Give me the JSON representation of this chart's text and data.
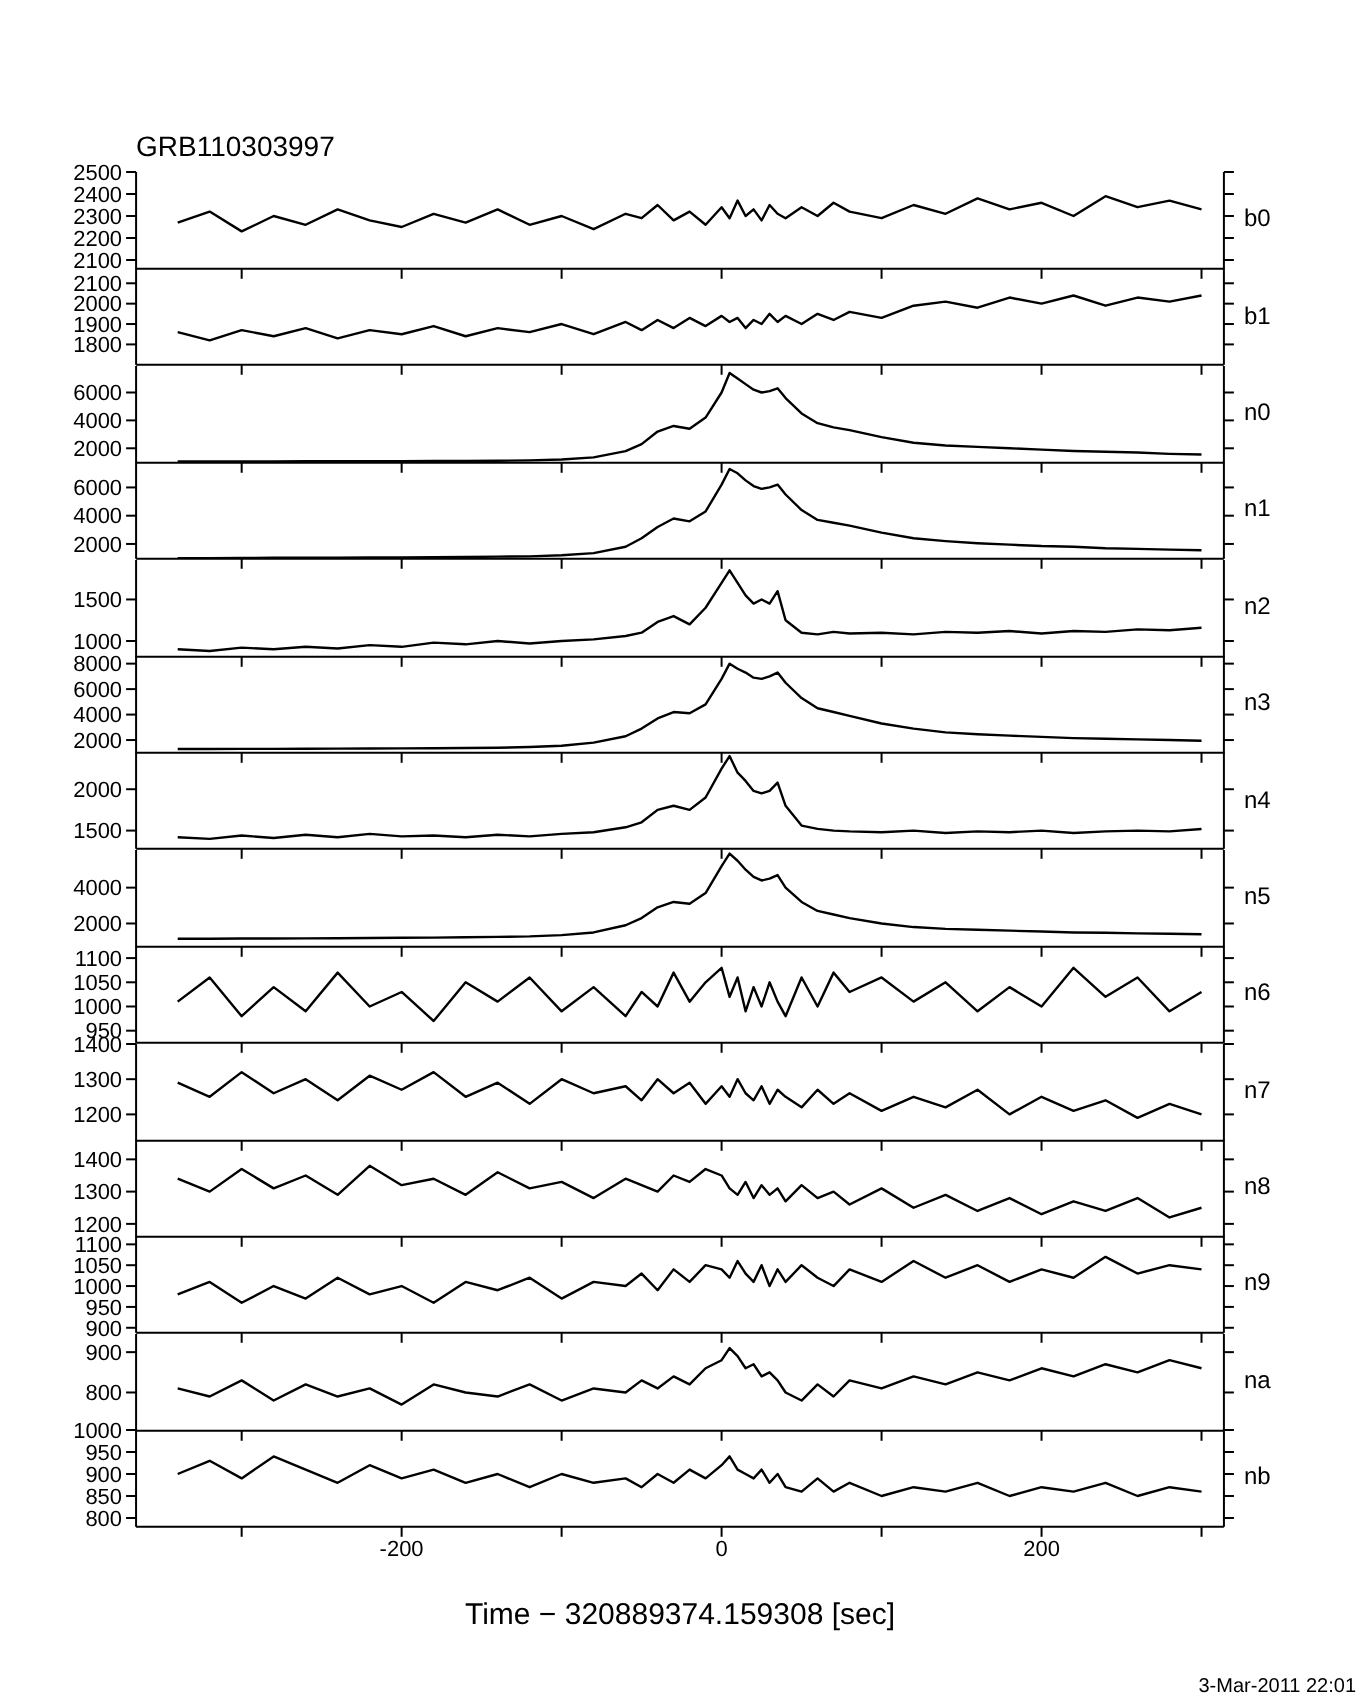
{
  "chart_data": [
    {
      "type": "line",
      "title": "GRB110303997",
      "x": [
        -340,
        -320,
        -300,
        -280,
        -260,
        -240,
        -220,
        -200,
        -180,
        -160,
        -140,
        -120,
        -100,
        -80,
        -60,
        -50,
        -40,
        -30,
        -20,
        -10,
        0,
        5,
        10,
        15,
        20,
        25,
        30,
        35,
        40,
        50,
        60,
        70,
        80,
        100,
        120,
        140,
        160,
        180,
        200,
        220,
        240,
        260,
        280,
        300
      ],
      "xlim": [
        -366,
        314
      ],
      "xticks": [
        {
          "value": -300,
          "label": null
        },
        {
          "value": -200,
          "label": null
        },
        {
          "value": -100,
          "label": null
        },
        {
          "value": 0,
          "label": null
        },
        {
          "value": 100,
          "label": null
        },
        {
          "value": 200,
          "label": null
        },
        {
          "value": 300,
          "label": null
        }
      ],
      "ylim": [
        2060,
        2500
      ],
      "yticks": [
        2100,
        2200,
        2300,
        2400,
        2500
      ],
      "tick_labels": "y",
      "series": [
        {
          "name": "b0",
          "color": "#000000",
          "values": [
            2270,
            2320,
            2230,
            2300,
            2260,
            2330,
            2280,
            2250,
            2310,
            2270,
            2330,
            2260,
            2300,
            2240,
            2310,
            2290,
            2350,
            2280,
            2320,
            2260,
            2340,
            2290,
            2370,
            2300,
            2330,
            2280,
            2350,
            2310,
            2290,
            2340,
            2300,
            2360,
            2320,
            2290,
            2350,
            2310,
            2380,
            2330,
            2360,
            2300,
            2390,
            2340,
            2370,
            2330
          ]
        }
      ]
    },
    {
      "type": "line",
      "x": [
        -340,
        -320,
        -300,
        -280,
        -260,
        -240,
        -220,
        -200,
        -180,
        -160,
        -140,
        -120,
        -100,
        -80,
        -60,
        -50,
        -40,
        -30,
        -20,
        -10,
        0,
        5,
        10,
        15,
        20,
        25,
        30,
        35,
        40,
        50,
        60,
        70,
        80,
        100,
        120,
        140,
        160,
        180,
        200,
        220,
        240,
        260,
        280,
        300
      ],
      "xlim": [
        -366,
        314
      ],
      "xticks": [
        {
          "value": -300,
          "label": null
        },
        {
          "value": -200,
          "label": null
        },
        {
          "value": -100,
          "label": null
        },
        {
          "value": 0,
          "label": null
        },
        {
          "value": 100,
          "label": null
        },
        {
          "value": 200,
          "label": null
        },
        {
          "value": 300,
          "label": null
        }
      ],
      "ylim": [
        1700,
        2175
      ],
      "yticks": [
        1800,
        1900,
        2000,
        2100
      ],
      "tick_labels": "y",
      "series": [
        {
          "name": "b1",
          "color": "#000000",
          "values": [
            1860,
            1820,
            1870,
            1840,
            1880,
            1830,
            1870,
            1850,
            1890,
            1840,
            1880,
            1860,
            1900,
            1850,
            1910,
            1870,
            1920,
            1880,
            1930,
            1890,
            1940,
            1910,
            1930,
            1880,
            1920,
            1900,
            1950,
            1910,
            1940,
            1900,
            1950,
            1920,
            1960,
            1930,
            1990,
            2010,
            1980,
            2030,
            2000,
            2040,
            1990,
            2030,
            2010,
            2040
          ]
        }
      ]
    },
    {
      "type": "line",
      "x": [
        -340,
        -320,
        -300,
        -280,
        -260,
        -240,
        -220,
        -200,
        -180,
        -160,
        -140,
        -120,
        -100,
        -80,
        -60,
        -50,
        -40,
        -30,
        -20,
        -10,
        0,
        5,
        10,
        15,
        20,
        25,
        30,
        35,
        40,
        50,
        60,
        70,
        80,
        100,
        120,
        140,
        160,
        180,
        200,
        220,
        240,
        260,
        280,
        300
      ],
      "xlim": [
        -366,
        314
      ],
      "xticks": [
        {
          "value": -300,
          "label": null
        },
        {
          "value": -200,
          "label": null
        },
        {
          "value": -100,
          "label": null
        },
        {
          "value": 0,
          "label": null
        },
        {
          "value": 100,
          "label": null
        },
        {
          "value": 200,
          "label": null
        },
        {
          "value": 300,
          "label": null
        }
      ],
      "ylim": [
        960,
        7900
      ],
      "yticks": [
        2000,
        4000,
        6000
      ],
      "tick_labels": "y",
      "series": [
        {
          "name": "n0",
          "color": "#000000",
          "values": [
            1050,
            1050,
            1060,
            1060,
            1070,
            1070,
            1080,
            1080,
            1090,
            1100,
            1110,
            1130,
            1200,
            1350,
            1800,
            2300,
            3200,
            3600,
            3400,
            4200,
            6000,
            7400,
            7000,
            6600,
            6200,
            6000,
            6100,
            6300,
            5600,
            4500,
            3800,
            3500,
            3300,
            2800,
            2400,
            2200,
            2100,
            2000,
            1900,
            1800,
            1750,
            1700,
            1600,
            1550
          ]
        }
      ]
    },
    {
      "type": "line",
      "x": [
        -340,
        -320,
        -300,
        -280,
        -260,
        -240,
        -220,
        -200,
        -180,
        -160,
        -140,
        -120,
        -100,
        -80,
        -60,
        -50,
        -40,
        -30,
        -20,
        -10,
        0,
        5,
        10,
        15,
        20,
        25,
        30,
        35,
        40,
        50,
        60,
        70,
        80,
        100,
        120,
        140,
        160,
        180,
        200,
        220,
        240,
        260,
        280,
        300
      ],
      "xlim": [
        -366,
        314
      ],
      "xticks": [
        {
          "value": -300,
          "label": null
        },
        {
          "value": -200,
          "label": null
        },
        {
          "value": -100,
          "label": null
        },
        {
          "value": 0,
          "label": null
        },
        {
          "value": 100,
          "label": null
        },
        {
          "value": 200,
          "label": null
        },
        {
          "value": 300,
          "label": null
        }
      ],
      "ylim": [
        950,
        7800
      ],
      "yticks": [
        2000,
        4000,
        6000
      ],
      "tick_labels": "y",
      "series": [
        {
          "name": "n1",
          "color": "#000000",
          "values": [
            1000,
            1000,
            1010,
            1020,
            1020,
            1030,
            1040,
            1050,
            1060,
            1080,
            1100,
            1120,
            1200,
            1350,
            1800,
            2400,
            3200,
            3800,
            3600,
            4300,
            6200,
            7300,
            7000,
            6500,
            6100,
            5900,
            6000,
            6200,
            5500,
            4400,
            3700,
            3500,
            3300,
            2800,
            2400,
            2200,
            2050,
            1950,
            1850,
            1800,
            1700,
            1650,
            1600,
            1550
          ]
        }
      ]
    },
    {
      "type": "line",
      "x": [
        -340,
        -320,
        -300,
        -280,
        -260,
        -240,
        -220,
        -200,
        -180,
        -160,
        -140,
        -120,
        -100,
        -80,
        -60,
        -50,
        -40,
        -30,
        -20,
        -10,
        0,
        5,
        10,
        15,
        20,
        25,
        30,
        35,
        40,
        50,
        60,
        70,
        80,
        100,
        120,
        140,
        160,
        180,
        200,
        220,
        240,
        260,
        280,
        300
      ],
      "xlim": [
        -366,
        314
      ],
      "xticks": [
        {
          "value": -300,
          "label": null
        },
        {
          "value": -200,
          "label": null
        },
        {
          "value": -100,
          "label": null
        },
        {
          "value": 0,
          "label": null
        },
        {
          "value": 100,
          "label": null
        },
        {
          "value": 200,
          "label": null
        },
        {
          "value": 300,
          "label": null
        }
      ],
      "ylim": [
        810,
        1975
      ],
      "yticks": [
        1000,
        1500
      ],
      "tick_labels": "y",
      "series": [
        {
          "name": "n2",
          "color": "#000000",
          "values": [
            900,
            880,
            920,
            900,
            930,
            910,
            950,
            930,
            980,
            960,
            1000,
            970,
            1000,
            1020,
            1060,
            1100,
            1230,
            1300,
            1200,
            1400,
            1700,
            1850,
            1700,
            1550,
            1450,
            1500,
            1450,
            1600,
            1250,
            1100,
            1080,
            1110,
            1090,
            1100,
            1080,
            1110,
            1100,
            1120,
            1090,
            1120,
            1110,
            1140,
            1130,
            1160
          ]
        }
      ]
    },
    {
      "type": "line",
      "x": [
        -340,
        -320,
        -300,
        -280,
        -260,
        -240,
        -220,
        -200,
        -180,
        -160,
        -140,
        -120,
        -100,
        -80,
        -60,
        -50,
        -40,
        -30,
        -20,
        -10,
        0,
        5,
        10,
        15,
        20,
        25,
        30,
        35,
        40,
        50,
        60,
        70,
        80,
        100,
        120,
        140,
        160,
        180,
        200,
        220,
        240,
        260,
        280,
        300
      ],
      "xlim": [
        -366,
        314
      ],
      "xticks": [
        {
          "value": -300,
          "label": null
        },
        {
          "value": -200,
          "label": null
        },
        {
          "value": -100,
          "label": null
        },
        {
          "value": 0,
          "label": null
        },
        {
          "value": 100,
          "label": null
        },
        {
          "value": 200,
          "label": null
        },
        {
          "value": 300,
          "label": null
        }
      ],
      "ylim": [
        1000,
        8600
      ],
      "yticks": [
        2000,
        4000,
        6000,
        8000
      ],
      "tick_labels": "y",
      "series": [
        {
          "name": "n3",
          "color": "#000000",
          "values": [
            1300,
            1300,
            1310,
            1310,
            1320,
            1330,
            1340,
            1350,
            1360,
            1380,
            1400,
            1450,
            1550,
            1800,
            2300,
            2900,
            3700,
            4200,
            4100,
            4800,
            6800,
            8000,
            7600,
            7300,
            6900,
            6800,
            7000,
            7300,
            6500,
            5300,
            4500,
            4200,
            3900,
            3300,
            2900,
            2600,
            2450,
            2350,
            2250,
            2150,
            2100,
            2050,
            2000,
            1950
          ]
        }
      ]
    },
    {
      "type": "line",
      "x": [
        -340,
        -320,
        -300,
        -280,
        -260,
        -240,
        -220,
        -200,
        -180,
        -160,
        -140,
        -120,
        -100,
        -80,
        -60,
        -50,
        -40,
        -30,
        -20,
        -10,
        0,
        5,
        10,
        15,
        20,
        25,
        30,
        35,
        40,
        50,
        60,
        70,
        80,
        100,
        120,
        140,
        160,
        180,
        200,
        220,
        240,
        260,
        280,
        300
      ],
      "xlim": [
        -366,
        314
      ],
      "xticks": [
        {
          "value": -300,
          "label": null
        },
        {
          "value": -200,
          "label": null
        },
        {
          "value": -100,
          "label": null
        },
        {
          "value": 0,
          "label": null
        },
        {
          "value": 100,
          "label": null
        },
        {
          "value": 200,
          "label": null
        },
        {
          "value": 300,
          "label": null
        }
      ],
      "ylim": [
        1280,
        2450
      ],
      "yticks": [
        1500,
        2000
      ],
      "tick_labels": "y",
      "series": [
        {
          "name": "n4",
          "color": "#000000",
          "values": [
            1420,
            1400,
            1440,
            1410,
            1450,
            1420,
            1460,
            1430,
            1440,
            1420,
            1450,
            1430,
            1460,
            1480,
            1540,
            1600,
            1750,
            1800,
            1750,
            1900,
            2250,
            2400,
            2200,
            2100,
            1980,
            1950,
            1980,
            2080,
            1800,
            1560,
            1520,
            1500,
            1490,
            1480,
            1500,
            1470,
            1490,
            1480,
            1500,
            1470,
            1490,
            1500,
            1490,
            1520
          ]
        }
      ]
    },
    {
      "type": "line",
      "x": [
        -340,
        -320,
        -300,
        -280,
        -260,
        -240,
        -220,
        -200,
        -180,
        -160,
        -140,
        -120,
        -100,
        -80,
        -60,
        -50,
        -40,
        -30,
        -20,
        -10,
        0,
        5,
        10,
        15,
        20,
        25,
        30,
        35,
        40,
        50,
        60,
        70,
        80,
        100,
        120,
        140,
        160,
        180,
        200,
        220,
        240,
        260,
        280,
        300
      ],
      "xlim": [
        -366,
        314
      ],
      "xticks": [
        {
          "value": -300,
          "label": null
        },
        {
          "value": -200,
          "label": null
        },
        {
          "value": -100,
          "label": null
        },
        {
          "value": 0,
          "label": null
        },
        {
          "value": 100,
          "label": null
        },
        {
          "value": 200,
          "label": null
        },
        {
          "value": 300,
          "label": null
        }
      ],
      "ylim": [
        700,
        6100
      ],
      "yticks": [
        2000,
        4000
      ],
      "tick_labels": "y",
      "series": [
        {
          "name": "n5",
          "color": "#000000",
          "values": [
            1150,
            1150,
            1160,
            1160,
            1170,
            1180,
            1190,
            1200,
            1210,
            1230,
            1250,
            1280,
            1350,
            1500,
            1900,
            2300,
            2900,
            3200,
            3100,
            3700,
            5200,
            5900,
            5500,
            5000,
            4600,
            4400,
            4500,
            4700,
            4000,
            3200,
            2700,
            2500,
            2300,
            2000,
            1800,
            1700,
            1650,
            1600,
            1550,
            1500,
            1480,
            1450,
            1430,
            1400
          ]
        }
      ]
    },
    {
      "type": "line",
      "x": [
        -340,
        -320,
        -300,
        -280,
        -260,
        -240,
        -220,
        -200,
        -180,
        -160,
        -140,
        -120,
        -100,
        -80,
        -60,
        -50,
        -40,
        -30,
        -20,
        -10,
        0,
        5,
        10,
        15,
        20,
        25,
        30,
        35,
        40,
        50,
        60,
        70,
        80,
        100,
        120,
        140,
        160,
        180,
        200,
        220,
        240,
        260,
        280,
        300
      ],
      "xlim": [
        -366,
        314
      ],
      "xticks": [
        {
          "value": -300,
          "label": null
        },
        {
          "value": -200,
          "label": null
        },
        {
          "value": -100,
          "label": null
        },
        {
          "value": 0,
          "label": null
        },
        {
          "value": 100,
          "label": null
        },
        {
          "value": 200,
          "label": null
        },
        {
          "value": 300,
          "label": null
        }
      ],
      "ylim": [
        925,
        1125
      ],
      "yticks": [
        950,
        1000,
        1050,
        1100
      ],
      "tick_labels": "y",
      "series": [
        {
          "name": "n6",
          "color": "#000000",
          "values": [
            1010,
            1060,
            980,
            1040,
            990,
            1070,
            1000,
            1030,
            970,
            1050,
            1010,
            1060,
            990,
            1040,
            980,
            1030,
            1000,
            1070,
            1010,
            1050,
            1080,
            1020,
            1060,
            990,
            1040,
            1000,
            1050,
            1010,
            980,
            1060,
            1000,
            1070,
            1030,
            1060,
            1010,
            1050,
            990,
            1040,
            1000,
            1080,
            1020,
            1060,
            990,
            1030
          ]
        }
      ]
    },
    {
      "type": "line",
      "x": [
        -340,
        -320,
        -300,
        -280,
        -260,
        -240,
        -220,
        -200,
        -180,
        -160,
        -140,
        -120,
        -100,
        -80,
        -60,
        -50,
        -40,
        -30,
        -20,
        -10,
        0,
        5,
        10,
        15,
        20,
        25,
        30,
        35,
        40,
        50,
        60,
        70,
        80,
        100,
        120,
        140,
        160,
        180,
        200,
        220,
        240,
        260,
        280,
        300
      ],
      "xlim": [
        -366,
        314
      ],
      "xticks": [
        {
          "value": -300,
          "label": null
        },
        {
          "value": -200,
          "label": null
        },
        {
          "value": -100,
          "label": null
        },
        {
          "value": 0,
          "label": null
        },
        {
          "value": 100,
          "label": null
        },
        {
          "value": 200,
          "label": null
        },
        {
          "value": 300,
          "label": null
        }
      ],
      "ylim": [
        1125,
        1400
      ],
      "yticks": [
        1200,
        1300,
        1400
      ],
      "tick_labels": "y",
      "series": [
        {
          "name": "n7",
          "color": "#000000",
          "values": [
            1290,
            1250,
            1320,
            1260,
            1300,
            1240,
            1310,
            1270,
            1320,
            1250,
            1290,
            1230,
            1300,
            1260,
            1280,
            1240,
            1300,
            1260,
            1290,
            1230,
            1280,
            1250,
            1300,
            1260,
            1240,
            1280,
            1230,
            1270,
            1250,
            1220,
            1270,
            1230,
            1260,
            1210,
            1250,
            1220,
            1270,
            1200,
            1250,
            1210,
            1240,
            1190,
            1230,
            1200
          ]
        }
      ]
    },
    {
      "type": "line",
      "x": [
        -340,
        -320,
        -300,
        -280,
        -260,
        -240,
        -220,
        -200,
        -180,
        -160,
        -140,
        -120,
        -100,
        -80,
        -60,
        -50,
        -40,
        -30,
        -20,
        -10,
        0,
        5,
        10,
        15,
        20,
        25,
        30,
        35,
        40,
        50,
        60,
        70,
        80,
        100,
        120,
        140,
        160,
        180,
        200,
        220,
        240,
        260,
        280,
        300
      ],
      "xlim": [
        -366,
        314
      ],
      "xticks": [
        {
          "value": -300,
          "label": null
        },
        {
          "value": -200,
          "label": null
        },
        {
          "value": -100,
          "label": null
        },
        {
          "value": 0,
          "label": null
        },
        {
          "value": 100,
          "label": null
        },
        {
          "value": 200,
          "label": null
        },
        {
          "value": 300,
          "label": null
        }
      ],
      "ylim": [
        1160,
        1460
      ],
      "yticks": [
        1200,
        1300,
        1400
      ],
      "tick_labels": "y",
      "series": [
        {
          "name": "n8",
          "color": "#000000",
          "values": [
            1340,
            1300,
            1370,
            1310,
            1350,
            1290,
            1380,
            1320,
            1340,
            1290,
            1360,
            1310,
            1330,
            1280,
            1340,
            1320,
            1300,
            1350,
            1330,
            1370,
            1350,
            1310,
            1290,
            1330,
            1280,
            1320,
            1290,
            1310,
            1270,
            1320,
            1280,
            1300,
            1260,
            1310,
            1250,
            1290,
            1240,
            1280,
            1230,
            1270,
            1240,
            1280,
            1220,
            1250
          ]
        }
      ]
    },
    {
      "type": "line",
      "x": [
        -340,
        -320,
        -300,
        -280,
        -260,
        -240,
        -220,
        -200,
        -180,
        -160,
        -140,
        -120,
        -100,
        -80,
        -60,
        -50,
        -40,
        -30,
        -20,
        -10,
        0,
        5,
        10,
        15,
        20,
        25,
        30,
        35,
        40,
        50,
        60,
        70,
        80,
        100,
        120,
        140,
        160,
        180,
        200,
        220,
        240,
        260,
        280,
        300
      ],
      "xlim": [
        -366,
        314
      ],
      "xticks": [
        {
          "value": -300,
          "label": null
        },
        {
          "value": -200,
          "label": null
        },
        {
          "value": -100,
          "label": null
        },
        {
          "value": 0,
          "label": null
        },
        {
          "value": 100,
          "label": null
        },
        {
          "value": 200,
          "label": null
        },
        {
          "value": 300,
          "label": null
        }
      ],
      "ylim": [
        888,
        1120
      ],
      "yticks": [
        900,
        950,
        1000,
        1050,
        1100
      ],
      "tick_labels": "y",
      "series": [
        {
          "name": "n9",
          "color": "#000000",
          "values": [
            980,
            1010,
            960,
            1000,
            970,
            1020,
            980,
            1000,
            960,
            1010,
            990,
            1020,
            970,
            1010,
            1000,
            1030,
            990,
            1040,
            1010,
            1050,
            1040,
            1020,
            1060,
            1030,
            1010,
            1050,
            1000,
            1040,
            1010,
            1050,
            1020,
            1000,
            1040,
            1010,
            1060,
            1020,
            1050,
            1010,
            1040,
            1020,
            1070,
            1030,
            1050,
            1040
          ]
        }
      ]
    },
    {
      "type": "line",
      "x": [
        -340,
        -320,
        -300,
        -280,
        -260,
        -240,
        -220,
        -200,
        -180,
        -160,
        -140,
        -120,
        -100,
        -80,
        -60,
        -50,
        -40,
        -30,
        -20,
        -10,
        0,
        5,
        10,
        15,
        20,
        25,
        30,
        35,
        40,
        50,
        60,
        70,
        80,
        100,
        120,
        140,
        160,
        180,
        200,
        220,
        240,
        260,
        280,
        300
      ],
      "xlim": [
        -366,
        314
      ],
      "xticks": [
        {
          "value": -300,
          "label": null
        },
        {
          "value": -200,
          "label": null
        },
        {
          "value": -100,
          "label": null
        },
        {
          "value": 0,
          "label": null
        },
        {
          "value": 100,
          "label": null
        },
        {
          "value": 200,
          "label": null
        },
        {
          "value": 300,
          "label": null
        }
      ],
      "ylim": [
        705,
        945
      ],
      "yticks": [
        800,
        900
      ],
      "tick_labels": "y",
      "series": [
        {
          "name": "na",
          "color": "#000000",
          "values": [
            810,
            790,
            830,
            780,
            820,
            790,
            810,
            770,
            820,
            800,
            790,
            820,
            780,
            810,
            800,
            830,
            810,
            840,
            820,
            860,
            880,
            910,
            890,
            860,
            870,
            840,
            850,
            830,
            800,
            780,
            820,
            790,
            830,
            810,
            840,
            820,
            850,
            830,
            860,
            840,
            870,
            850,
            880,
            860
          ]
        }
      ]
    },
    {
      "type": "line",
      "xlabel": "Time − 320889374.159308 [sec]",
      "annotations": [
        "3-Mar-2011 22:01"
      ],
      "x": [
        -340,
        -320,
        -300,
        -280,
        -260,
        -240,
        -220,
        -200,
        -180,
        -160,
        -140,
        -120,
        -100,
        -80,
        -60,
        -50,
        -40,
        -30,
        -20,
        -10,
        0,
        5,
        10,
        15,
        20,
        25,
        30,
        35,
        40,
        50,
        60,
        70,
        80,
        100,
        120,
        140,
        160,
        180,
        200,
        220,
        240,
        260,
        280,
        300
      ],
      "xlim": [
        -366,
        314
      ],
      "xticks": [
        {
          "value": -300,
          "label": null
        },
        -200,
        {
          "value": -100,
          "label": null
        },
        0,
        {
          "value": 100,
          "label": null
        },
        200,
        {
          "value": 300,
          "label": null
        }
      ],
      "ylim": [
        780,
        1000
      ],
      "yticks": [
        800,
        850,
        900,
        950,
        1000
      ],
      "series": [
        {
          "name": "nb",
          "color": "#000000",
          "values": [
            900,
            930,
            890,
            940,
            910,
            880,
            920,
            890,
            910,
            880,
            900,
            870,
            900,
            880,
            890,
            870,
            900,
            880,
            910,
            890,
            920,
            940,
            910,
            900,
            890,
            910,
            880,
            900,
            870,
            860,
            890,
            860,
            880,
            850,
            870,
            860,
            880,
            850,
            870,
            860,
            880,
            850,
            870,
            860
          ]
        }
      ]
    }
  ]
}
